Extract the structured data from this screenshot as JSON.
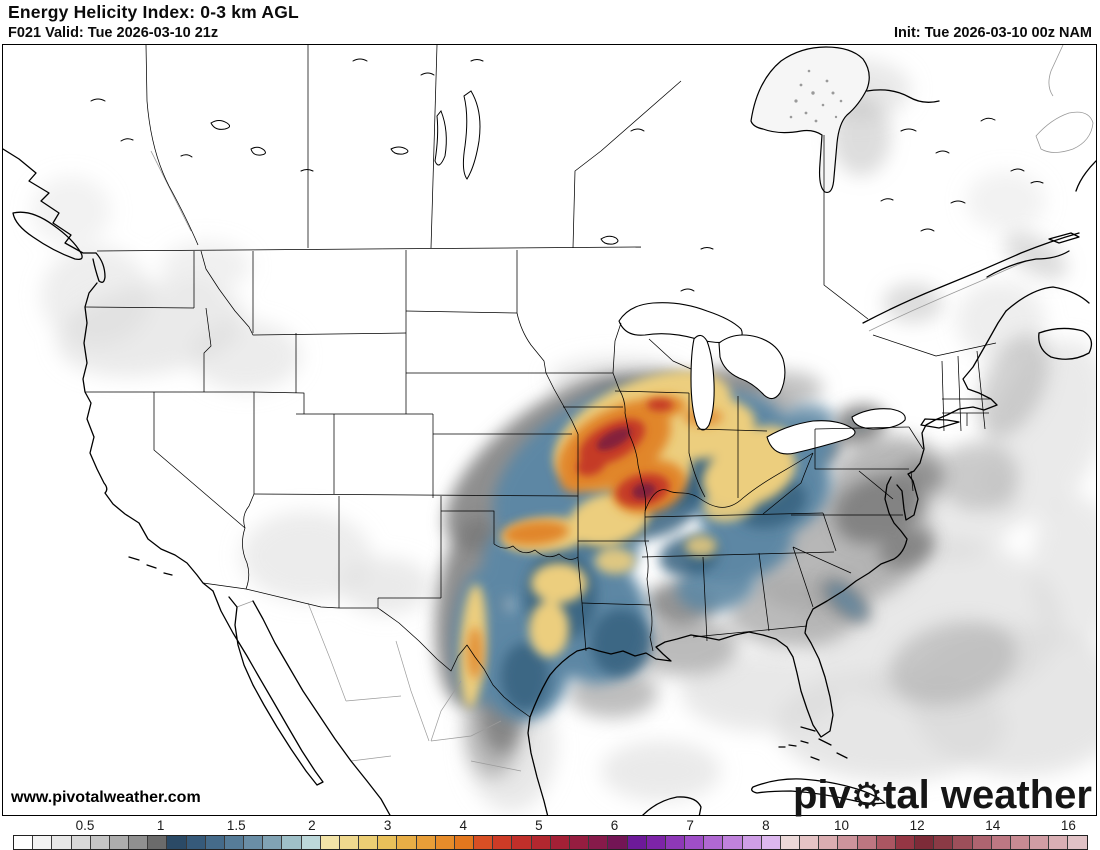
{
  "header": {
    "title": "Energy Helicity Index: 0-3 km AGL",
    "valid": "F021 Valid: Tue 2026-03-10 21z",
    "init": "Init: Tue 2026-03-10 00z NAM"
  },
  "map": {
    "url": "www.pivotalweather.com",
    "watermark": {
      "pre": "piv",
      "gear": "⚙",
      "post": "tal weather"
    }
  },
  "colorbar": {
    "ticks": [
      "0.5",
      "1",
      "1.5",
      "2",
      "3",
      "4",
      "5",
      "6",
      "7",
      "8",
      "10",
      "12",
      "14",
      "16"
    ],
    "cells": [
      "#ffffff",
      "#f3f3f3",
      "#e7e7e7",
      "#d8d8d8",
      "#c5c5c5",
      "#adadad",
      "#909090",
      "#6b6b6b",
      "#2b4a66",
      "#365a7a",
      "#456b8a",
      "#567c98",
      "#6a8ea6",
      "#81a3b4",
      "#9fc0c8",
      "#bdd8da",
      "#f3e4a8",
      "#efd88e",
      "#ecce74",
      "#e9c05a",
      "#e8ae46",
      "#e89e38",
      "#e78c2a",
      "#e3771e",
      "#d84f24",
      "#cd3b26",
      "#c02f2a",
      "#b2272f",
      "#a42036",
      "#961d40",
      "#871a4a",
      "#731555",
      "#6d1a99",
      "#7d24a8",
      "#8e38b8",
      "#9f4ec8",
      "#b068d2",
      "#c082dc",
      "#cf9ee6",
      "#ddb8ee",
      "#ecd9d9",
      "#e5c3c5",
      "#dbadb1",
      "#cd949c",
      "#bd7681",
      "#ab5662",
      "#953644",
      "#7d2b38",
      "#8b3a45",
      "#9d4f5a",
      "#ae6470",
      "#bd7883",
      "#c88b93",
      "#d19da4",
      "#d9afb4",
      "#e1c2c6"
    ]
  },
  "field_palette": {
    "gray_light": "#d9d9d9",
    "gray_mid": "#aaaaaa",
    "gray_dark": "#7b7b7b",
    "blue": "#5d87a4",
    "navy": "#35607f",
    "yellow": "#ecce7e",
    "orange": "#e1862c",
    "red": "#c53a26",
    "dark_red": "#7e1d3e"
  }
}
